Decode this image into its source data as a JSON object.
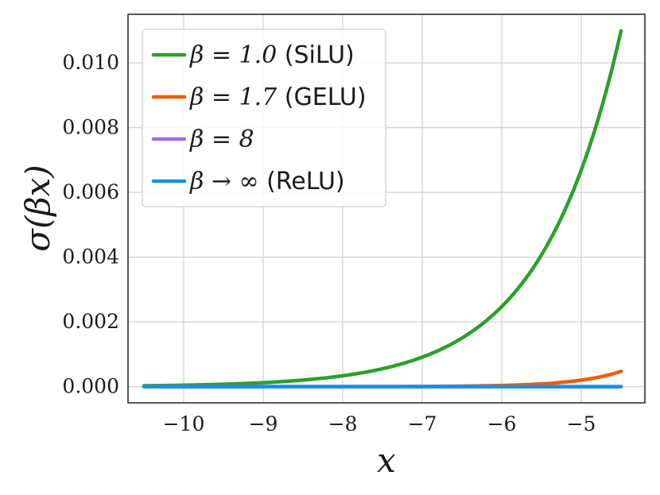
{
  "chart_data": {
    "type": "line",
    "xlabel": "x",
    "ylabel": "σ(βx)",
    "xlim": [
      -10.7,
      -4.2
    ],
    "ylim": [
      -0.0005,
      0.0115
    ],
    "xticks": [
      -10,
      -9,
      -8,
      -7,
      -6,
      -5
    ],
    "xtick_labels": [
      "−10",
      "−9",
      "−8",
      "−7",
      "−6",
      "−5"
    ],
    "yticks": [
      0.0,
      0.002,
      0.004,
      0.006,
      0.008,
      0.01
    ],
    "ytick_labels": [
      "0.000",
      "0.002",
      "0.004",
      "0.006",
      "0.008",
      "0.010"
    ],
    "grid": true,
    "legend_position": "top-left",
    "x_range": [
      -10.5,
      -4.5
    ],
    "series": [
      {
        "name": "β = 1.0 (SiLU)",
        "legend_math": "β = 1.0",
        "legend_suffix": " (SiLU)",
        "color": "#2ca02c",
        "x": [
          -10.5,
          -10.0,
          -9.5,
          -9.0,
          -8.5,
          -8.0,
          -7.5,
          -7.0,
          -6.5,
          -6.0,
          -5.5,
          -5.0,
          -4.5
        ],
        "y": [
          2.75e-05,
          4.54e-05,
          7.49e-05,
          0.0001234,
          0.0002034,
          0.0003354,
          0.0005529,
          0.0009111,
          0.0015011,
          0.0024726,
          0.0040701,
          0.0066929,
          0.0109869
        ]
      },
      {
        "name": "β = 1.7 (GELU)",
        "legend_math": "β = 1.7",
        "legend_suffix": " (GELU)",
        "color": "#e6600d",
        "x": [
          -10.5,
          -10.0,
          -9.5,
          -9.0,
          -8.5,
          -8.0,
          -7.5,
          -7.0,
          -6.5,
          -6.0,
          -5.5,
          -5.0,
          -4.5
        ],
        "y": [
          2e-08,
          4e-08,
          1e-07,
          2.3e-07,
          5.3e-07,
          1.23e-06,
          2.88e-06,
          6.73e-06,
          1.57e-05,
          3.68e-05,
          8.6e-05,
          0.0002013,
          0.0004705
        ]
      },
      {
        "name": "β = 8",
        "legend_math": "β = 8",
        "legend_suffix": "",
        "color": "#a06bf0",
        "x": [
          -10.5,
          -4.5
        ],
        "y": [
          0.0,
          0.0
        ]
      },
      {
        "name": "β → ∞ (ReLU)",
        "legend_math": "β → ∞",
        "legend_suffix": " (ReLU)",
        "color": "#1a8fe3",
        "x": [
          -10.5,
          -4.5
        ],
        "y": [
          0.0,
          0.0
        ]
      }
    ]
  }
}
